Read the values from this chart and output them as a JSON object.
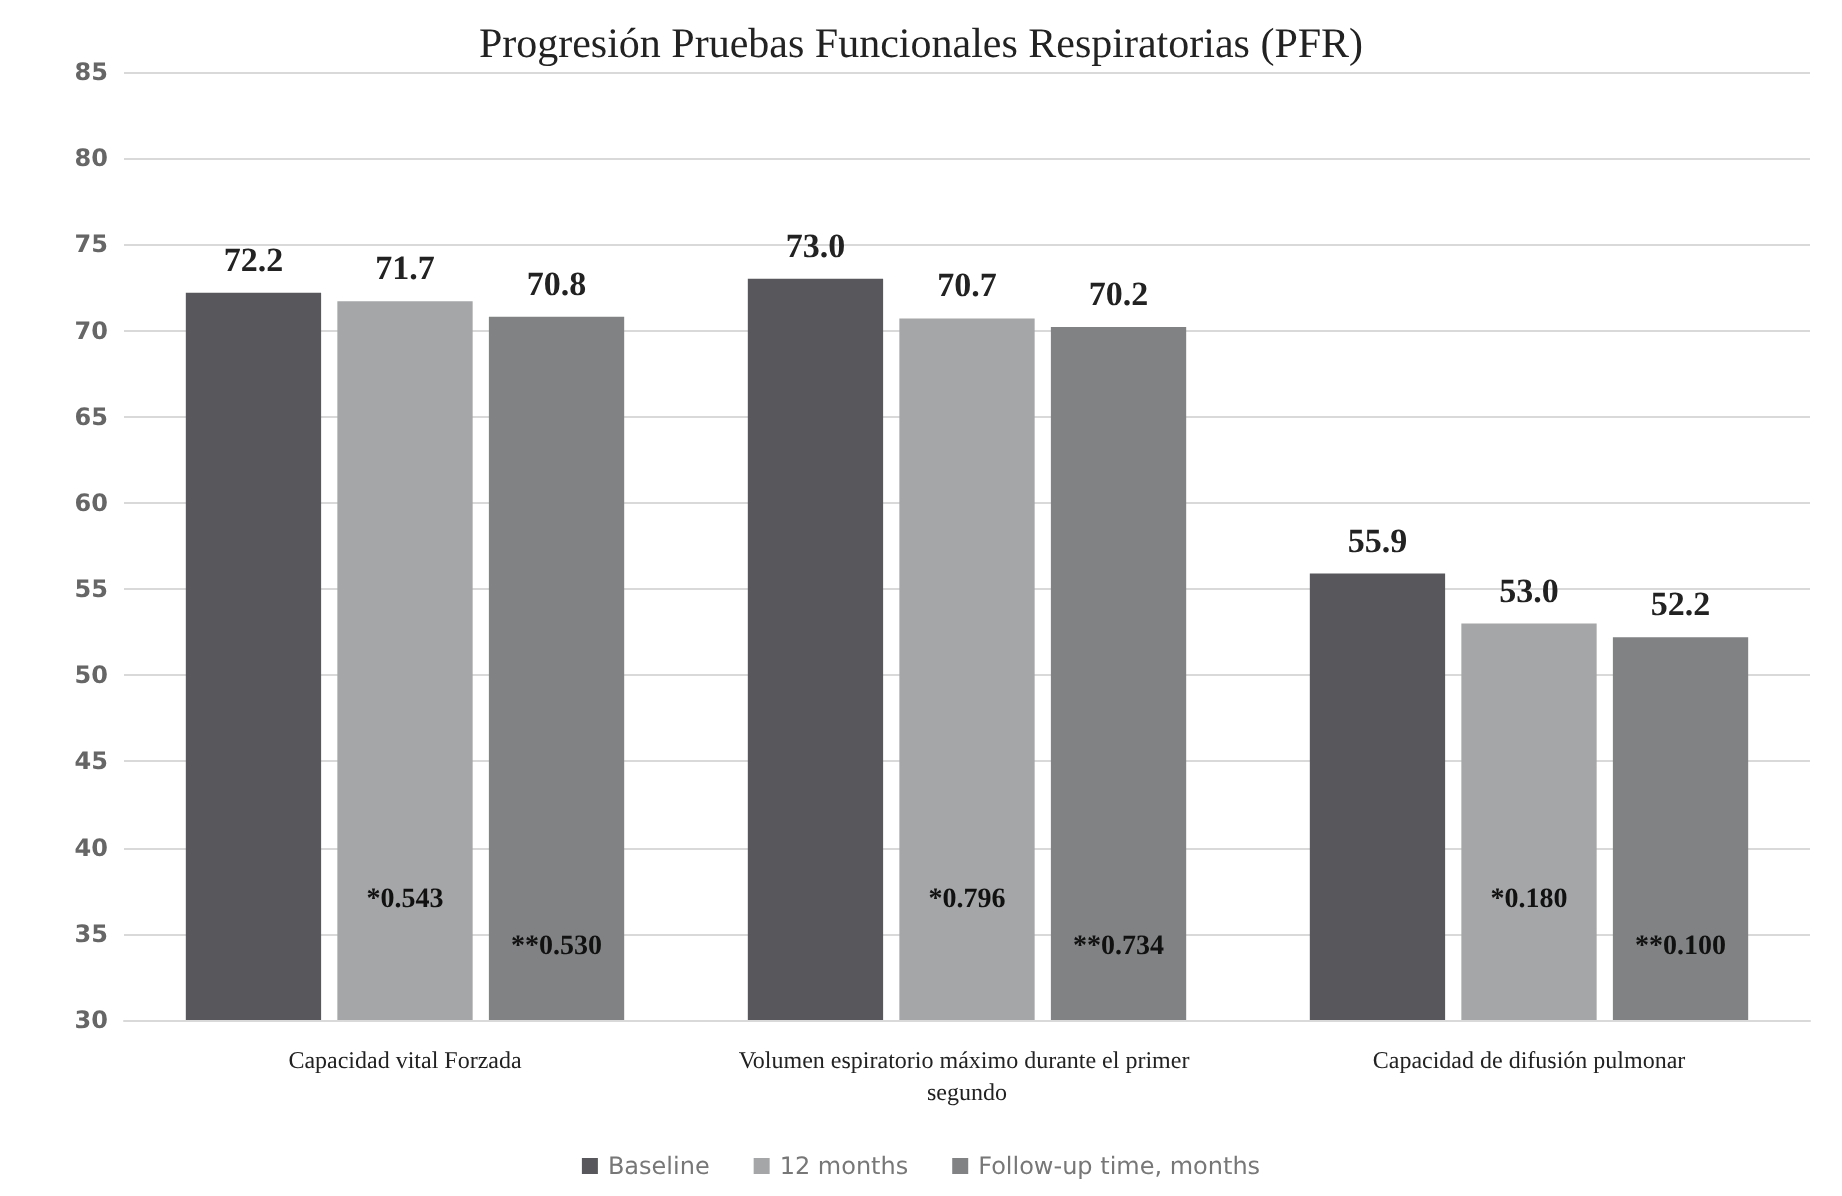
{
  "chart_data": {
    "type": "bar",
    "title": "Progresión Pruebas Funcionales Respiratorias (PFR)",
    "categories": [
      "Capacidad vital Forzada",
      "Volumen espiratorio máximo durante el primer segundo",
      "Capacidad de difusión pulmonar"
    ],
    "series": [
      {
        "name": "Baseline",
        "color": "#58585c",
        "values": [
          72.2,
          73.0,
          55.9
        ],
        "value_labels": [
          "72.2",
          "73.0",
          "55.9"
        ]
      },
      {
        "name": "12 months",
        "color": "#a5a6a8",
        "values": [
          71.7,
          70.7,
          53.0
        ],
        "value_labels": [
          "71.7",
          "70.7",
          "53.0"
        ]
      },
      {
        "name": "Follow-up time, months",
        "color": "#808284",
        "values": [
          70.8,
          70.2,
          52.2
        ],
        "value_labels": [
          "70.8",
          "70.2",
          "52.2"
        ]
      }
    ],
    "ylim": [
      30,
      85
    ],
    "yticks": [
      30,
      35,
      40,
      45,
      50,
      55,
      60,
      65,
      70,
      75,
      80,
      85
    ],
    "grid": "y",
    "legend": "bottom",
    "annotations": [
      "*0.543",
      "**0.530",
      "*0.796",
      "**0.734",
      "*0.180",
      "**0.100"
    ]
  }
}
